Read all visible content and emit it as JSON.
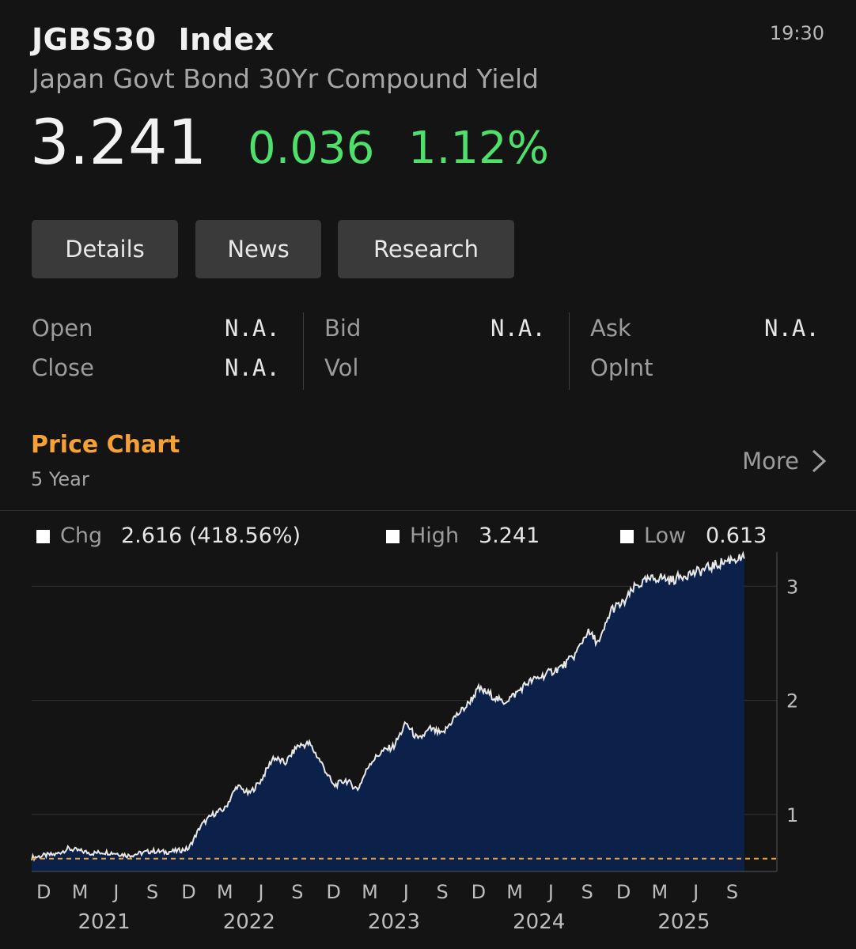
{
  "header": {
    "ticker": "JGBS30",
    "type": "Index",
    "time": "19:30",
    "name": "Japan Govt Bond 30Yr Compound Yield",
    "last": "3.241",
    "change": "0.036",
    "change_pct": "1.12%",
    "accent_up": "#4ee06a"
  },
  "tabs": [
    {
      "label": "Details"
    },
    {
      "label": "News"
    },
    {
      "label": "Research"
    }
  ],
  "quote": {
    "open_label": "Open",
    "open": "N.A.",
    "close_label": "Close",
    "close": "N.A.",
    "bid_label": "Bid",
    "bid": "N.A.",
    "vol_label": "Vol",
    "vol": "",
    "ask_label": "Ask",
    "ask": "N.A.",
    "opint_label": "OpInt",
    "opint": ""
  },
  "price_chart": {
    "title": "Price Chart",
    "period": "5 Year",
    "more_label": "More",
    "chg_label": "Chg",
    "chg_value": "2.616 (418.56%)",
    "high_label": "High",
    "high_value": "3.241",
    "low_label": "Low",
    "low_value": "0.613",
    "title_color": "#f5a136"
  },
  "chart_data": {
    "type": "area",
    "x_axis_months": [
      "D",
      "M",
      "J",
      "S",
      "D",
      "M",
      "J",
      "S",
      "D",
      "M",
      "J",
      "S",
      "D",
      "M",
      "J",
      "S",
      "D",
      "M",
      "J",
      "S"
    ],
    "x_axis_years": [
      "2021",
      "2022",
      "2023",
      "2024",
      "2025"
    ],
    "y_ticks": [
      "1",
      "2",
      "3"
    ],
    "ylim": [
      0.5,
      3.3
    ],
    "reference_line": 0.613,
    "series": [
      {
        "x": [
          "2020-11",
          "2020-12",
          "2021-01",
          "2021-02",
          "2021-03",
          "2021-04",
          "2021-05",
          "2021-06",
          "2021-07",
          "2021-08",
          "2021-09",
          "2021-10",
          "2021-11",
          "2021-12",
          "2022-01",
          "2022-02",
          "2022-03",
          "2022-04",
          "2022-05",
          "2022-06",
          "2022-07",
          "2022-08",
          "2022-09",
          "2022-10",
          "2022-11",
          "2022-12",
          "2023-01",
          "2023-02",
          "2023-03",
          "2023-04",
          "2023-05",
          "2023-06",
          "2023-07",
          "2023-08",
          "2023-09",
          "2023-10",
          "2023-11",
          "2023-12",
          "2024-01",
          "2024-02",
          "2024-03",
          "2024-04",
          "2024-05",
          "2024-06",
          "2024-07",
          "2024-08",
          "2024-09",
          "2024-10",
          "2024-11",
          "2024-12",
          "2025-01",
          "2025-02",
          "2025-03",
          "2025-04",
          "2025-05",
          "2025-06",
          "2025-07",
          "2025-08",
          "2025-09",
          "2025-10"
        ],
        "values": [
          0.62,
          0.64,
          0.65,
          0.7,
          0.68,
          0.66,
          0.67,
          0.66,
          0.64,
          0.66,
          0.68,
          0.67,
          0.68,
          0.7,
          0.9,
          1.0,
          1.05,
          1.25,
          1.18,
          1.3,
          1.5,
          1.45,
          1.6,
          1.62,
          1.45,
          1.25,
          1.3,
          1.22,
          1.45,
          1.55,
          1.6,
          1.8,
          1.65,
          1.75,
          1.7,
          1.85,
          1.95,
          2.1,
          2.05,
          1.98,
          2.05,
          2.15,
          2.2,
          2.25,
          2.3,
          2.4,
          2.6,
          2.5,
          2.8,
          2.85,
          3.0,
          3.05,
          3.08,
          3.05,
          3.1,
          3.12,
          3.16,
          3.2,
          3.241,
          3.241
        ]
      }
    ],
    "line_color": "#e8e8e8",
    "fill_color": "#0b2149",
    "ref_line_color": "#f0a030"
  }
}
